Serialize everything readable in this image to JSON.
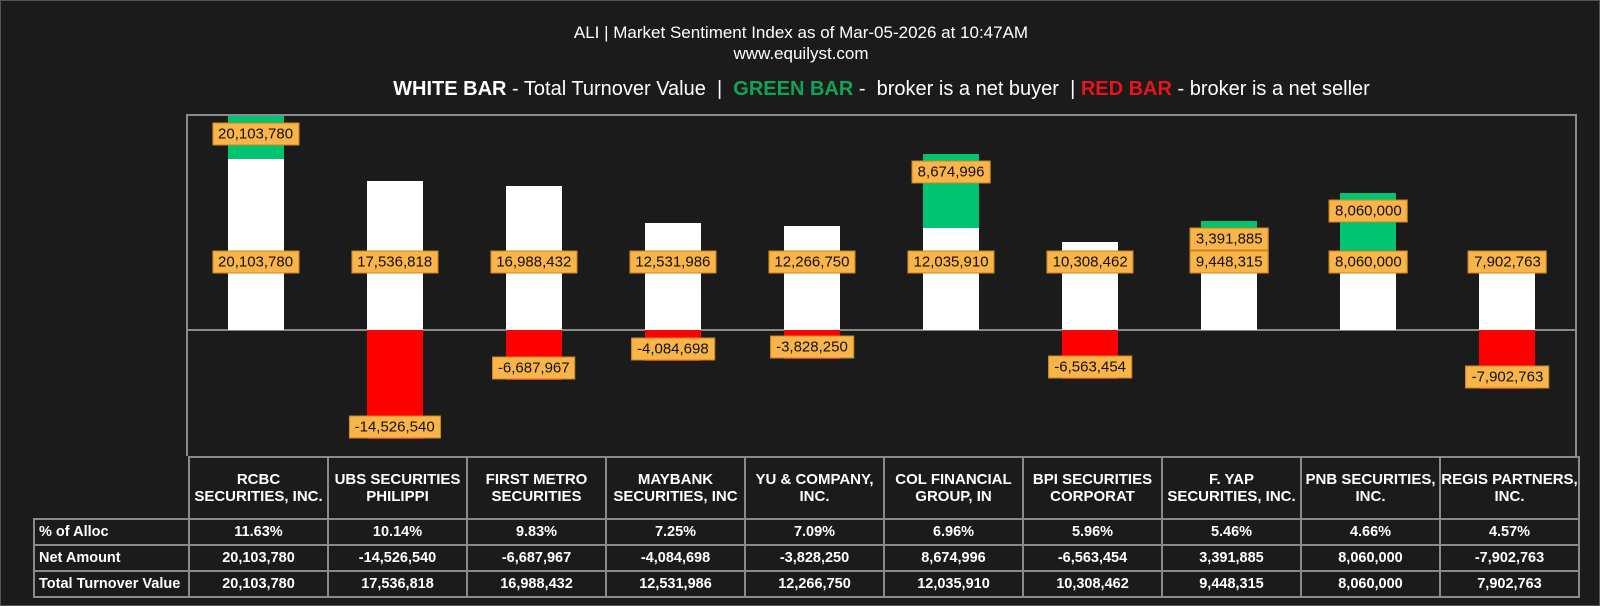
{
  "title": "ALI | Market Sentiment Index as of Mar-05-2026 at 10:47AM",
  "subtitle": "www.equilyst.com",
  "legend": {
    "white_label": "WHITE BAR",
    "white_desc": " - Total Turnover Value  |  ",
    "green_label": "GREEN BAR",
    "green_desc": " -  broker is a net buyer  | ",
    "red_label": "RED BAR",
    "red_desc": " - broker is a net seller"
  },
  "colors": {
    "background": "#1c1b1c",
    "turnover": "#ffffff",
    "net_buy": "#00c472",
    "net_sell": "#ff0000",
    "label_bg": "#f9b44a"
  },
  "chart_data": {
    "type": "bar",
    "categories": [
      "RCBC SECURITIES, INC.",
      "UBS SECURITIES PHILIPPI",
      "FIRST METRO SECURITIES",
      "MAYBANK SECURITIES, INC",
      "YU & COMPANY, INC.",
      "COL FINANCIAL GROUP, IN",
      "BPI SECURITIES CORPORAT",
      "F. YAP SECURITIES, INC.",
      "PNB SECURITIES, INC.",
      "REGIS PARTNERS, INC."
    ],
    "series": [
      {
        "name": "Total Turnover Value",
        "values": [
          20103780,
          17536818,
          16988432,
          12531986,
          12266750,
          12035910,
          10308462,
          9448315,
          8060000,
          7902763
        ],
        "labels": [
          "20,103,780",
          "17,536,818",
          "16,988,432",
          "12,531,986",
          "12,266,750",
          "12,035,910",
          "10,308,462",
          "9,448,315",
          "8,060,000",
          "7,902,763"
        ]
      },
      {
        "name": "Net Amount",
        "values": [
          20103780,
          -14526540,
          -6687967,
          -4084698,
          -3828250,
          8674996,
          -6563454,
          3391885,
          8060000,
          -7902763
        ],
        "labels": [
          "20,103,780",
          "-14,526,540",
          "-6,687,967",
          "-4,084,698",
          "-3,828,250",
          "8,674,996",
          "-6,563,454",
          "3,391,885",
          "8,060,000",
          "-7,902,763"
        ]
      }
    ],
    "table": {
      "row_labels": [
        "% of Alloc",
        "Net Amount",
        "Total Turnover Value"
      ],
      "alloc": [
        "11.63%",
        "10.14%",
        "9.83%",
        "7.25%",
        "7.09%",
        "6.96%",
        "5.96%",
        "5.46%",
        "4.66%",
        "4.57%"
      ]
    },
    "grid": false,
    "legend_placement": "top"
  }
}
